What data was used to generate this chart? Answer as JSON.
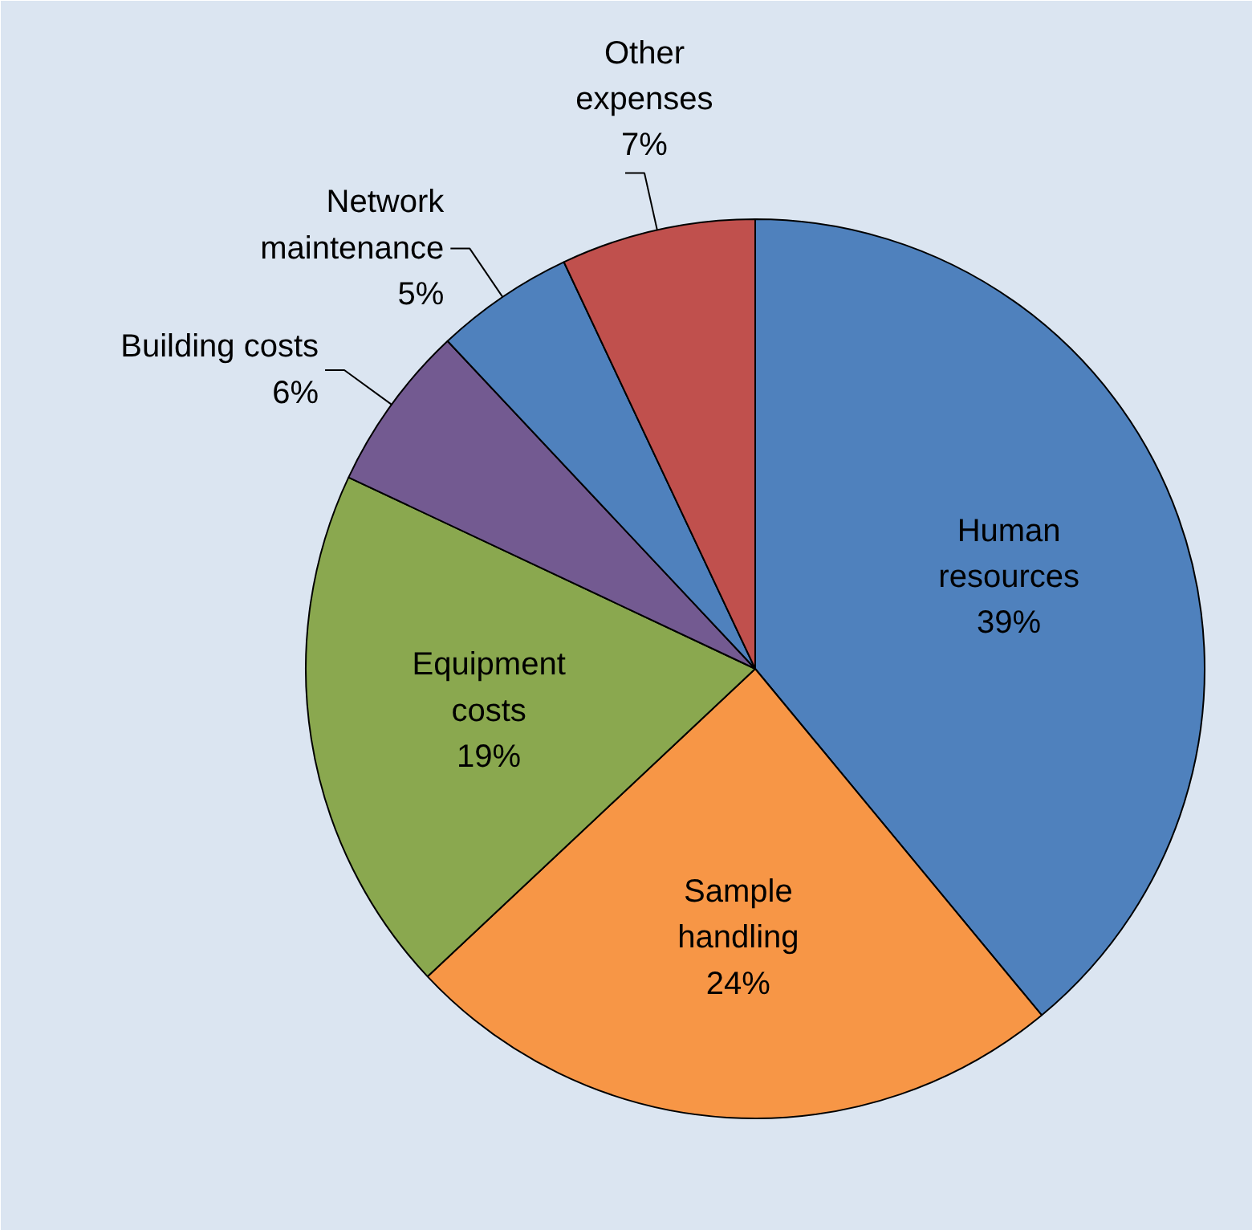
{
  "chart_data": {
    "type": "pie",
    "categories": [
      "Human\nresources",
      "Sample\nhandling",
      "Equipment\ncosts",
      "Building costs",
      "Network\nmaintenance",
      "Other\nexpenses"
    ],
    "values": [
      39,
      24,
      19,
      6,
      5,
      7
    ],
    "colors": [
      "#4f81bd",
      "#f79646",
      "#8aa84f",
      "#735a91",
      "#4f81bd",
      "#c0504d"
    ],
    "value_labels": [
      "39%",
      "24%",
      "19%",
      "6%",
      "5%",
      "7%"
    ]
  }
}
